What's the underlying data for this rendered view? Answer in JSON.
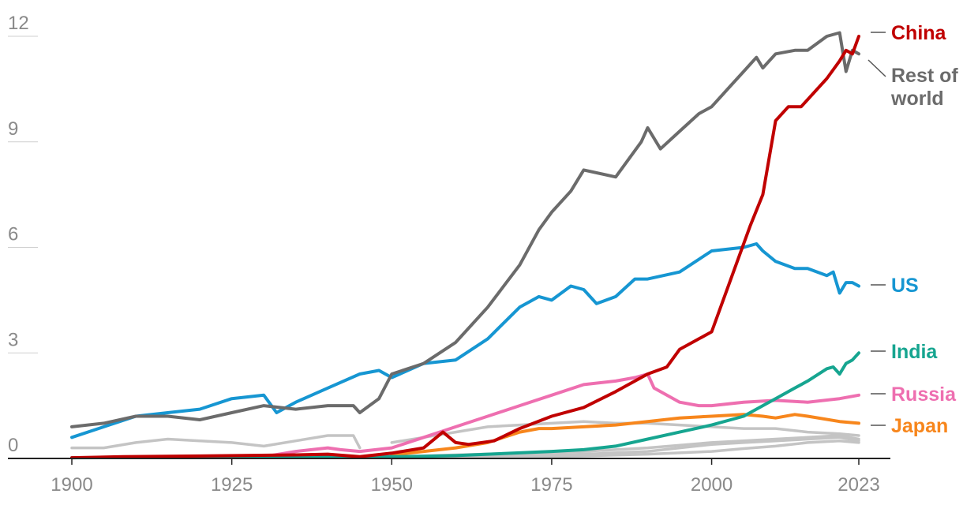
{
  "chart_data": {
    "type": "line",
    "title": "",
    "xlabel": "",
    "ylabel": "",
    "xlim": [
      1900,
      2023
    ],
    "ylim": [
      0,
      12
    ],
    "x_ticks": [
      1900,
      1925,
      1950,
      1975,
      2000,
      2023
    ],
    "x_tick_labels": [
      "1900",
      "1925",
      "1950",
      "1975",
      "2000",
      "2023"
    ],
    "y_ticks": [
      0,
      3,
      6,
      9,
      12
    ],
    "y_tick_labels": [
      "0",
      "3",
      "6",
      "9",
      "12"
    ],
    "grid": "horizontal",
    "legend": "direct labels at right",
    "colors": {
      "China": "#c00000",
      "Rest of world": "#6b6b6b",
      "US": "#1696d2",
      "India": "#16a590",
      "Russia": "#ee6fb0",
      "Japan": "#f7861c",
      "background_countries": "#c4c4c4"
    },
    "series": [
      {
        "name": "China",
        "label_lines": [
          "China"
        ],
        "x": [
          1900,
          1908,
          1920,
          1935,
          1940,
          1945,
          1950,
          1955,
          1958,
          1960,
          1962,
          1966,
          1970,
          1975,
          1980,
          1985,
          1990,
          1993,
          1995,
          1998,
          2000,
          2002,
          2004,
          2006,
          2008,
          2010,
          2012,
          2014,
          2018,
          2020,
          2021,
          2022,
          2023
        ],
        "y": [
          0.02,
          0.05,
          0.07,
          0.1,
          0.12,
          0.05,
          0.15,
          0.3,
          0.75,
          0.45,
          0.4,
          0.5,
          0.85,
          1.2,
          1.45,
          1.9,
          2.4,
          2.6,
          3.1,
          3.4,
          3.6,
          4.6,
          5.6,
          6.6,
          7.5,
          9.6,
          10.0,
          10.0,
          10.8,
          11.3,
          11.6,
          11.5,
          12.0
        ]
      },
      {
        "name": "Rest of world",
        "label_lines": [
          "Rest of",
          "world"
        ],
        "x": [
          1900,
          1905,
          1910,
          1915,
          1920,
          1925,
          1930,
          1935,
          1940,
          1944,
          1945,
          1948,
          1950,
          1955,
          1960,
          1965,
          1970,
          1973,
          1975,
          1978,
          1980,
          1985,
          1989,
          1990,
          1992,
          1995,
          1998,
          2000,
          2003,
          2005,
          2007,
          2008,
          2010,
          2013,
          2015,
          2018,
          2020,
          2021,
          2022,
          2023
        ],
        "y": [
          0.9,
          1.0,
          1.2,
          1.2,
          1.1,
          1.3,
          1.5,
          1.4,
          1.5,
          1.5,
          1.3,
          1.7,
          2.4,
          2.7,
          3.3,
          4.3,
          5.5,
          6.5,
          7.0,
          7.6,
          8.2,
          8.0,
          9.0,
          9.4,
          8.8,
          9.3,
          9.8,
          10.0,
          10.6,
          11.0,
          11.4,
          11.1,
          11.5,
          11.6,
          11.6,
          12.0,
          12.1,
          11.0,
          11.6,
          11.5
        ]
      },
      {
        "name": "US",
        "label_lines": [
          "US"
        ],
        "x": [
          1900,
          1905,
          1910,
          1915,
          1920,
          1925,
          1930,
          1932,
          1935,
          1940,
          1945,
          1948,
          1950,
          1955,
          1960,
          1965,
          1970,
          1973,
          1975,
          1978,
          1980,
          1982,
          1985,
          1988,
          1990,
          1995,
          2000,
          2005,
          2007,
          2008,
          2010,
          2013,
          2015,
          2018,
          2019,
          2020,
          2021,
          2022,
          2023
        ],
        "y": [
          0.6,
          0.9,
          1.2,
          1.3,
          1.4,
          1.7,
          1.8,
          1.3,
          1.6,
          2.0,
          2.4,
          2.5,
          2.3,
          2.7,
          2.8,
          3.4,
          4.3,
          4.6,
          4.5,
          4.9,
          4.8,
          4.4,
          4.6,
          5.1,
          5.1,
          5.3,
          5.9,
          6.0,
          6.1,
          5.9,
          5.6,
          5.4,
          5.4,
          5.2,
          5.3,
          4.7,
          5.0,
          5.0,
          4.9
        ]
      },
      {
        "name": "India",
        "label_lines": [
          "India"
        ],
        "x": [
          1900,
          1920,
          1940,
          1950,
          1955,
          1960,
          1965,
          1970,
          1975,
          1980,
          1985,
          1990,
          1995,
          2000,
          2005,
          2010,
          2013,
          2015,
          2018,
          2019,
          2020,
          2021,
          2022,
          2023
        ],
        "y": [
          0.02,
          0.03,
          0.04,
          0.05,
          0.06,
          0.08,
          0.12,
          0.16,
          0.2,
          0.25,
          0.35,
          0.55,
          0.75,
          0.95,
          1.2,
          1.7,
          2.0,
          2.2,
          2.55,
          2.6,
          2.4,
          2.7,
          2.8,
          3.0
        ]
      },
      {
        "name": "Russia",
        "label_lines": [
          "Russia"
        ],
        "x": [
          1930,
          1935,
          1940,
          1942,
          1945,
          1950,
          1955,
          1960,
          1965,
          1970,
          1975,
          1980,
          1985,
          1988,
          1990,
          1991,
          1993,
          1995,
          1998,
          2000,
          2005,
          2010,
          2015,
          2020,
          2023
        ],
        "y": [
          0.05,
          0.2,
          0.3,
          0.25,
          0.2,
          0.3,
          0.6,
          0.9,
          1.2,
          1.5,
          1.8,
          2.1,
          2.2,
          2.3,
          2.4,
          2.0,
          1.8,
          1.6,
          1.5,
          1.5,
          1.6,
          1.65,
          1.6,
          1.7,
          1.8
        ]
      },
      {
        "name": "Japan",
        "label_lines": [
          "Japan"
        ],
        "x": [
          1950,
          1955,
          1960,
          1965,
          1970,
          1973,
          1975,
          1980,
          1985,
          1990,
          1995,
          2000,
          2005,
          2008,
          2010,
          2013,
          2015,
          2020,
          2023
        ],
        "y": [
          0.1,
          0.2,
          0.3,
          0.45,
          0.75,
          0.85,
          0.85,
          0.9,
          0.95,
          1.05,
          1.15,
          1.2,
          1.25,
          1.2,
          1.15,
          1.25,
          1.2,
          1.05,
          1.0
        ]
      },
      {
        "name": "",
        "label_lines": [],
        "x": [
          1900,
          1905,
          1910,
          1915,
          1920,
          1925,
          1930,
          1935,
          1940,
          1944,
          1945
        ],
        "y": [
          0.3,
          0.3,
          0.45,
          0.55,
          0.5,
          0.45,
          0.35,
          0.5,
          0.65,
          0.65,
          0.3
        ]
      },
      {
        "name": "",
        "label_lines": [],
        "x": [
          1950,
          1955,
          1960,
          1965,
          1970,
          1975,
          1980,
          1985,
          1990,
          1995,
          2000,
          2005,
          2010,
          2015,
          2020,
          2023
        ],
        "y": [
          0.45,
          0.6,
          0.75,
          0.9,
          0.95,
          1.0,
          1.05,
          1.0,
          1.0,
          0.95,
          0.9,
          0.85,
          0.85,
          0.75,
          0.7,
          0.65
        ]
      },
      {
        "name": "",
        "label_lines": [],
        "x": [
          1950,
          1960,
          1970,
          1980,
          1990,
          2000,
          2010,
          2015,
          2020,
          2023
        ],
        "y": [
          0.05,
          0.1,
          0.15,
          0.2,
          0.3,
          0.45,
          0.55,
          0.6,
          0.65,
          0.55
        ]
      },
      {
        "name": "",
        "label_lines": [],
        "x": [
          1950,
          1960,
          1970,
          1980,
          1990,
          1995,
          2000,
          2005,
          2010,
          2015,
          2020,
          2023
        ],
        "y": [
          0.02,
          0.05,
          0.08,
          0.12,
          0.2,
          0.3,
          0.4,
          0.45,
          0.5,
          0.55,
          0.6,
          0.5
        ]
      },
      {
        "name": "",
        "label_lines": [],
        "x": [
          1950,
          1960,
          1970,
          1980,
          1990,
          2000,
          2005,
          2010,
          2015,
          2020,
          2023
        ],
        "y": [
          0.01,
          0.02,
          0.04,
          0.07,
          0.12,
          0.2,
          0.28,
          0.35,
          0.45,
          0.5,
          0.45
        ]
      }
    ]
  }
}
